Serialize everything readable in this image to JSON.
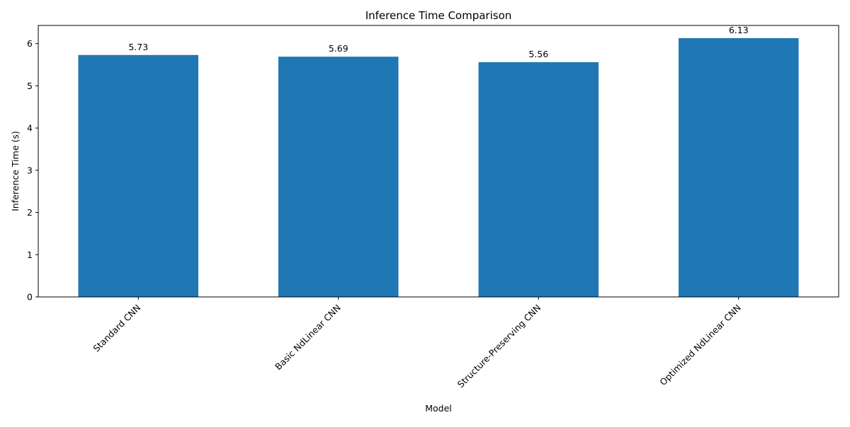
{
  "chart_data": {
    "type": "bar",
    "title": "Inference Time Comparison",
    "xlabel": "Model",
    "ylabel": "Inference Time (s)",
    "categories": [
      "Standard CNN",
      "Basic NdLinear CNN",
      "Structure-Preserving CNN",
      "Optimized NdLinear CNN"
    ],
    "values": [
      5.73,
      5.69,
      5.56,
      6.13
    ],
    "data_labels": [
      "5.73",
      "5.69",
      "5.56",
      "6.13"
    ],
    "yticks": [
      0,
      1,
      2,
      3,
      4,
      5,
      6
    ],
    "ylim": [
      0,
      6.43
    ],
    "grid": false,
    "bar_color": "#1f77b4",
    "x_tick_rotation_deg": 45
  }
}
